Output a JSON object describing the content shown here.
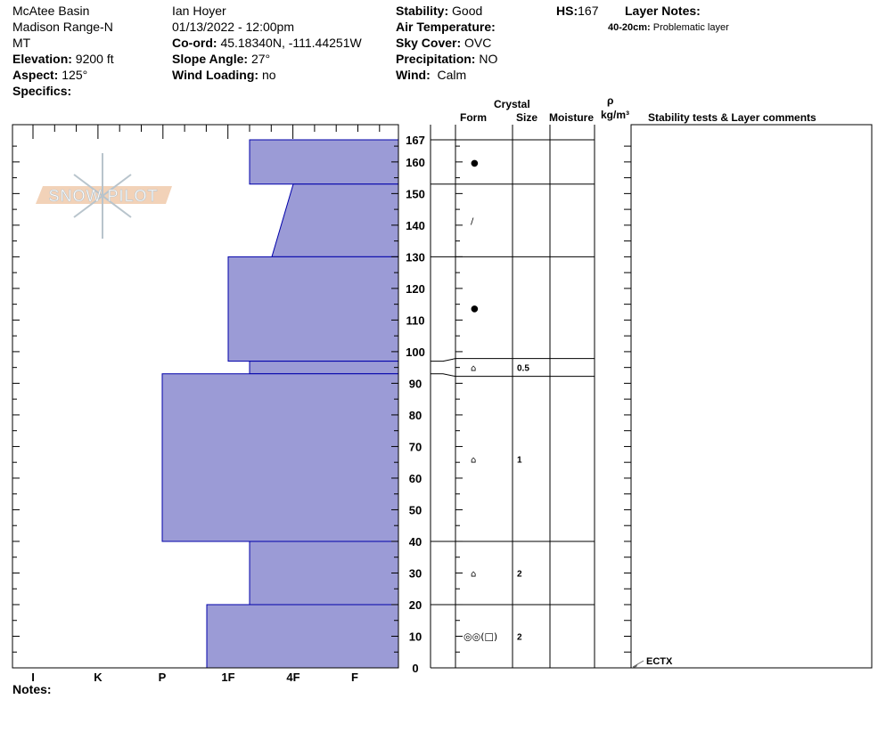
{
  "site": {
    "location": "McAtee Basin",
    "range": "Madison Range-N",
    "state": "MT",
    "elevation_label": "Elevation:",
    "elevation": "9200 ft",
    "aspect_label": "Aspect:",
    "aspect": "125°",
    "specifics_label": "Specifics:"
  },
  "obs": {
    "observer": "Ian Hoyer",
    "datetime": "01/13/2022 - 12:00pm",
    "coord_label": "Co-ord:",
    "coord": "45.18340N, -111.44251W",
    "slope_label": "Slope Angle:",
    "slope": "27°",
    "wind_loading_label": "Wind Loading:",
    "wind_loading": "no"
  },
  "conditions": {
    "stability_label": "Stability:",
    "stability": "Good",
    "air_temp_label": "Air Temperature:",
    "air_temp": "",
    "sky_label": "Sky Cover:",
    "sky": "OVC",
    "precip_label": "Precipitation:",
    "precip": "NO",
    "wind_label": "Wind:",
    "wind": "Calm"
  },
  "hs": {
    "label": "HS:",
    "value": "167"
  },
  "layer_notes": {
    "label": "Layer Notes:",
    "items": [
      {
        "range": "40-20cm:",
        "text": "Problematic layer"
      }
    ]
  },
  "columns": {
    "crystal": "Crystal",
    "form": "Form",
    "size": "Size",
    "moisture": "Moisture",
    "rho": "ρ",
    "density": "kg/m³",
    "comments": "Stability tests & Layer comments"
  },
  "notes_label": "Notes:",
  "logo": {
    "text": "SNOW PILOT"
  },
  "colors": {
    "layer_fill": "#9b9bd6",
    "layer_stroke": "#0000aa",
    "logo_bar": "#f2d2b8",
    "logo_flake": "#b8c4cc"
  },
  "chart_data": {
    "type": "bar",
    "orientation": "horizontal",
    "title": "",
    "xlabel": "",
    "ylabel": "",
    "x_ticks": [
      "I",
      "K",
      "P",
      "1F",
      "4F",
      "F"
    ],
    "y_ticks": [
      "0",
      "10",
      "20",
      "30",
      "40",
      "50",
      "60",
      "70",
      "80",
      "90",
      "100",
      "110",
      "120",
      "130",
      "140",
      "150",
      "160",
      "167"
    ],
    "ylim": [
      0,
      167
    ],
    "layers": [
      {
        "top": 167,
        "bottom": 153,
        "hardness_top": "1F+",
        "hardness_bottom": "1F+",
        "form": "●",
        "form_name": "decomposing-rounded",
        "size": ""
      },
      {
        "top": 153,
        "bottom": 130,
        "hardness_top": "4F",
        "hardness_bottom": "4F-",
        "form": "/",
        "form_name": "decomposing-fragments",
        "size": ""
      },
      {
        "top": 130,
        "bottom": 97,
        "hardness_top": "1F",
        "hardness_bottom": "1F",
        "form": "●",
        "form_name": "rounded",
        "size": ""
      },
      {
        "top": 97,
        "bottom": 93,
        "hardness_top": "1F+",
        "hardness_bottom": "1F+",
        "form": "⌂",
        "form_name": "faceted",
        "size": "0.5"
      },
      {
        "top": 93,
        "bottom": 40,
        "hardness_top": "P",
        "hardness_bottom": "P",
        "form": "⌂",
        "form_name": "faceted",
        "size": "1"
      },
      {
        "top": 40,
        "bottom": 20,
        "hardness_top": "1F+",
        "hardness_bottom": "1F+",
        "form": "⌂",
        "form_name": "faceted",
        "size": "2"
      },
      {
        "top": 20,
        "bottom": 0,
        "hardness_top": "1F-",
        "hardness_bottom": "1F-",
        "form": "◎◎(□)",
        "form_name": "depth-hoar",
        "size": "2"
      }
    ],
    "tests": [
      {
        "depth": 0,
        "label": "ECTX"
      }
    ]
  }
}
